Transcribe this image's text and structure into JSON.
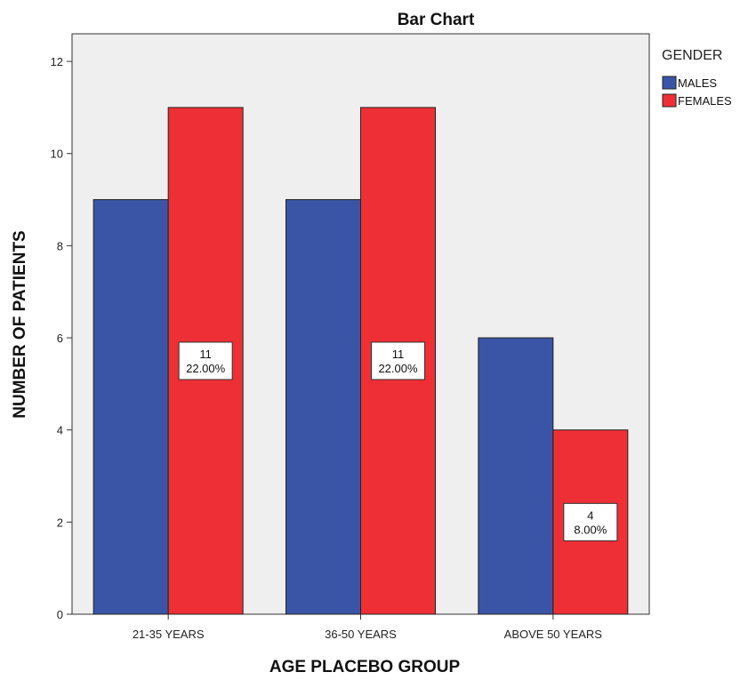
{
  "chart_data": {
    "type": "bar",
    "title": "Bar Chart",
    "xlabel": "AGE PLACEBO GROUP",
    "ylabel": "NUMBER OF PATIENTS",
    "categories": [
      "21-35 YEARS",
      "36-50 YEARS",
      "ABOVE 50 YEARS"
    ],
    "series": [
      {
        "name": "MALES",
        "values": [
          9,
          9,
          6
        ],
        "color": "#3a55a6"
      },
      {
        "name": "FEMALES",
        "values": [
          11,
          11,
          4
        ],
        "color": "#ee2f36"
      }
    ],
    "data_labels": [
      {
        "series": "FEMALES",
        "category": "21-35 YEARS",
        "count": "11",
        "percent": "22.00%"
      },
      {
        "series": "FEMALES",
        "category": "36-50 YEARS",
        "count": "11",
        "percent": "22.00%"
      },
      {
        "series": "FEMALES",
        "category": "ABOVE 50 YEARS",
        "count": "4",
        "percent": "8.00%"
      }
    ],
    "yticks": [
      0,
      2,
      4,
      6,
      8,
      10,
      12
    ],
    "ylim": [
      0,
      12.6
    ],
    "legend": {
      "title": "GENDER",
      "position": "right"
    },
    "grid": false,
    "plot_background": "#efefef"
  }
}
